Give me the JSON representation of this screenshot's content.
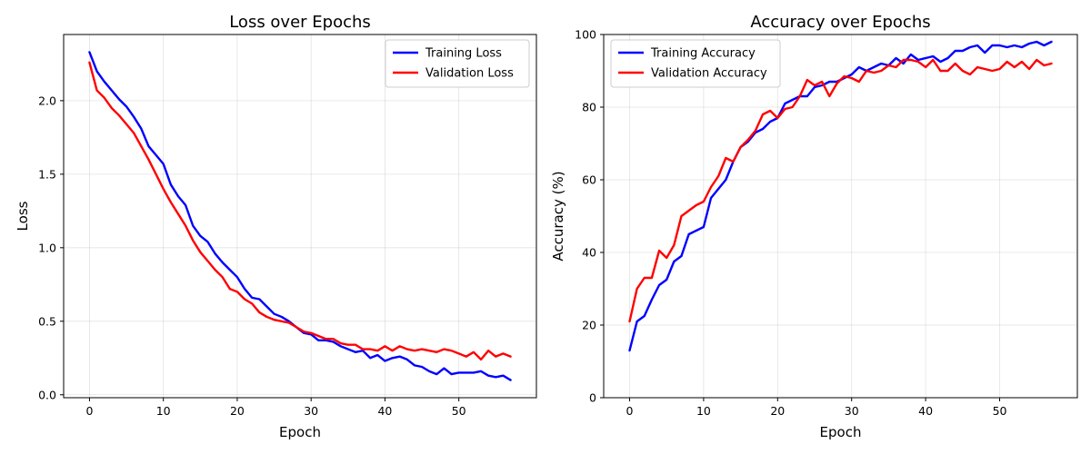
{
  "chart_data": [
    {
      "type": "line",
      "title": "Loss over Epochs",
      "xlabel": "Epoch",
      "ylabel": "Loss",
      "xlim": [
        -3.5,
        60.5
      ],
      "ylim": [
        -0.02,
        2.45
      ],
      "xticks": [
        0,
        10,
        20,
        30,
        40,
        50
      ],
      "yticks": [
        0.0,
        0.5,
        1.0,
        1.5,
        2.0
      ],
      "ytick_format": 1,
      "grid": true,
      "legend": "top-right",
      "series": [
        {
          "name": "Training Loss",
          "color": "#0000ff",
          "x": [
            0,
            1,
            2,
            3,
            4,
            5,
            6,
            7,
            8,
            9,
            10,
            11,
            12,
            13,
            14,
            15,
            16,
            17,
            18,
            19,
            20,
            21,
            22,
            23,
            24,
            25,
            26,
            27,
            28,
            29,
            30,
            31,
            32,
            33,
            34,
            35,
            36,
            37,
            38,
            39,
            40,
            41,
            42,
            43,
            44,
            45,
            46,
            47,
            48,
            49,
            50,
            51,
            52,
            53,
            54,
            55,
            56,
            57
          ],
          "values": [
            2.33,
            2.2,
            2.13,
            2.07,
            2.01,
            1.96,
            1.89,
            1.81,
            1.69,
            1.63,
            1.57,
            1.43,
            1.35,
            1.29,
            1.15,
            1.08,
            1.04,
            0.96,
            0.9,
            0.85,
            0.8,
            0.72,
            0.66,
            0.65,
            0.6,
            0.55,
            0.53,
            0.5,
            0.46,
            0.42,
            0.41,
            0.37,
            0.37,
            0.36,
            0.33,
            0.31,
            0.29,
            0.3,
            0.25,
            0.27,
            0.23,
            0.25,
            0.26,
            0.24,
            0.2,
            0.19,
            0.16,
            0.14,
            0.18,
            0.14,
            0.15,
            0.15,
            0.15,
            0.16,
            0.13,
            0.12,
            0.13,
            0.1
          ]
        },
        {
          "name": "Validation Loss",
          "color": "#ff0000",
          "x": [
            0,
            1,
            2,
            3,
            4,
            5,
            6,
            7,
            8,
            9,
            10,
            11,
            12,
            13,
            14,
            15,
            16,
            17,
            18,
            19,
            20,
            21,
            22,
            23,
            24,
            25,
            26,
            27,
            28,
            29,
            30,
            31,
            32,
            33,
            34,
            35,
            36,
            37,
            38,
            39,
            40,
            41,
            42,
            43,
            44,
            45,
            46,
            47,
            48,
            49,
            50,
            51,
            52,
            53,
            54,
            55,
            56,
            57
          ],
          "values": [
            2.26,
            2.07,
            2.02,
            1.95,
            1.9,
            1.84,
            1.78,
            1.69,
            1.6,
            1.5,
            1.4,
            1.31,
            1.23,
            1.15,
            1.05,
            0.97,
            0.91,
            0.85,
            0.8,
            0.72,
            0.7,
            0.65,
            0.62,
            0.56,
            0.53,
            0.51,
            0.5,
            0.49,
            0.46,
            0.43,
            0.42,
            0.4,
            0.38,
            0.38,
            0.35,
            0.34,
            0.34,
            0.31,
            0.31,
            0.3,
            0.33,
            0.3,
            0.33,
            0.31,
            0.3,
            0.31,
            0.3,
            0.29,
            0.31,
            0.3,
            0.28,
            0.26,
            0.29,
            0.24,
            0.3,
            0.26,
            0.28,
            0.26
          ]
        }
      ]
    },
    {
      "type": "line",
      "title": "Accuracy over Epochs",
      "xlabel": "Epoch",
      "ylabel": "Accuracy (%)",
      "xlim": [
        -3.5,
        60.5
      ],
      "ylim": [
        0,
        100
      ],
      "xticks": [
        0,
        10,
        20,
        30,
        40,
        50
      ],
      "yticks": [
        0,
        20,
        40,
        60,
        80,
        100
      ],
      "ytick_format": 0,
      "grid": true,
      "legend": "top-left",
      "series": [
        {
          "name": "Training Accuracy",
          "color": "#0000ff",
          "x": [
            0,
            1,
            2,
            3,
            4,
            5,
            6,
            7,
            8,
            9,
            10,
            11,
            12,
            13,
            14,
            15,
            16,
            17,
            18,
            19,
            20,
            21,
            22,
            23,
            24,
            25,
            26,
            27,
            28,
            29,
            30,
            31,
            32,
            33,
            34,
            35,
            36,
            37,
            38,
            39,
            40,
            41,
            42,
            43,
            44,
            45,
            46,
            47,
            48,
            49,
            50,
            51,
            52,
            53,
            54,
            55,
            56,
            57
          ],
          "values": [
            13,
            21,
            22.5,
            27,
            31,
            32.5,
            37.5,
            39,
            45,
            46,
            47,
            55,
            57.5,
            60,
            65,
            69,
            70.5,
            73,
            74,
            76,
            77,
            81,
            82,
            83,
            83,
            85.5,
            86,
            87,
            87,
            88,
            89,
            91,
            90,
            91,
            92,
            91.5,
            93.5,
            92,
            94.5,
            93,
            93.5,
            94,
            92.5,
            93.5,
            95.5,
            95.5,
            96.5,
            97,
            95,
            97,
            97,
            96.5,
            97,
            96.5,
            97.5,
            98,
            97,
            98
          ]
        },
        {
          "name": "Validation Accuracy",
          "color": "#ff0000",
          "x": [
            0,
            1,
            2,
            3,
            4,
            5,
            6,
            7,
            8,
            9,
            10,
            11,
            12,
            13,
            14,
            15,
            16,
            17,
            18,
            19,
            20,
            21,
            22,
            23,
            24,
            25,
            26,
            27,
            28,
            29,
            30,
            31,
            32,
            33,
            34,
            35,
            36,
            37,
            38,
            39,
            40,
            41,
            42,
            43,
            44,
            45,
            46,
            47,
            48,
            49,
            50,
            51,
            52,
            53,
            54,
            55,
            56,
            57
          ],
          "values": [
            21,
            30,
            33,
            33,
            40.5,
            38.5,
            42,
            50,
            51.5,
            53,
            54,
            58,
            61,
            66,
            65,
            69,
            71,
            73.5,
            78,
            79,
            77,
            79.5,
            80,
            83,
            87.5,
            86,
            87,
            83,
            86.5,
            88.5,
            88,
            87,
            90,
            89.5,
            90,
            91.5,
            91,
            93,
            93,
            92.5,
            91,
            93,
            90,
            90,
            92,
            90,
            89,
            91,
            90.5,
            90,
            90.5,
            92.5,
            91,
            92.5,
            90.5,
            93,
            91.5,
            92
          ]
        }
      ]
    }
  ]
}
